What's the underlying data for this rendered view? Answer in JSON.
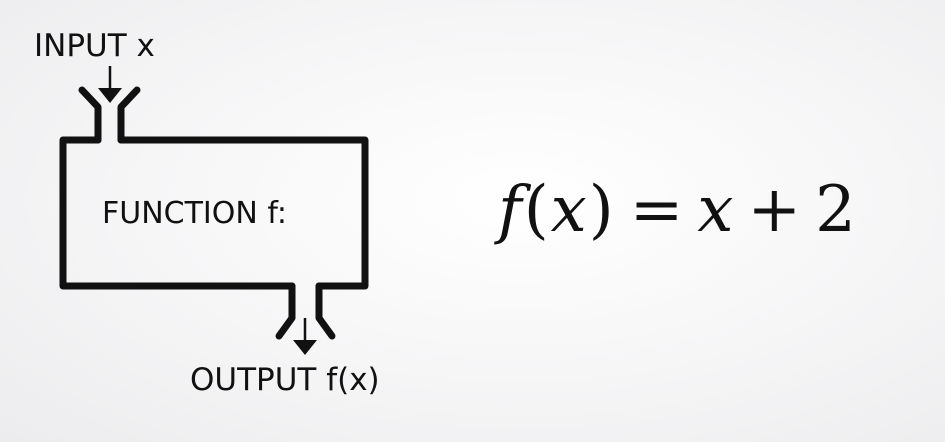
{
  "diagram": {
    "input_label": "INPUT x",
    "function_label": "FUNCTION f:",
    "output_label": "OUTPUT f(x)"
  },
  "equation": {
    "fn": "f",
    "open_paren": "(",
    "arg": "x",
    "close_paren": ")",
    "equals": "=",
    "lhs_var": "x",
    "plus": "+",
    "constant": "2"
  }
}
